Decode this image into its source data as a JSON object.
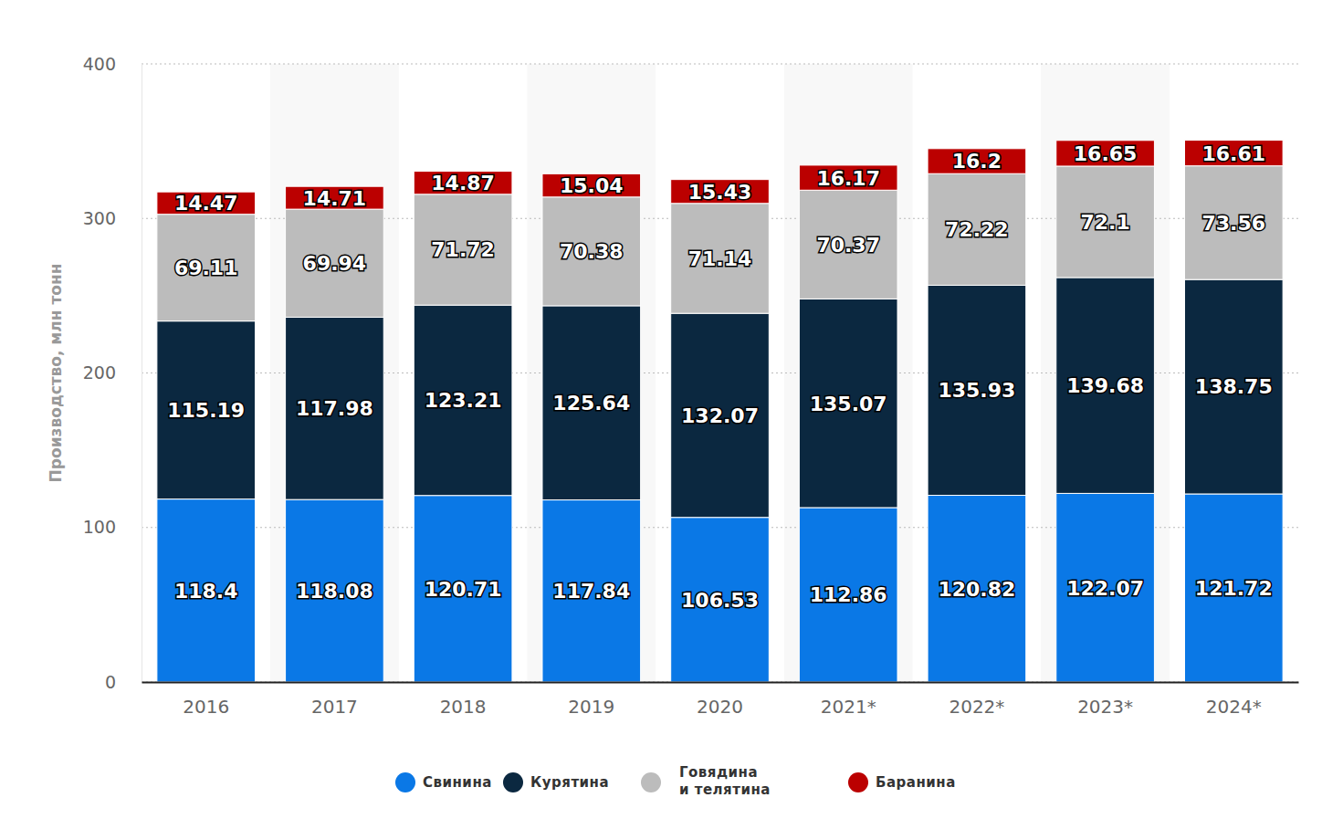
{
  "chart_data": {
    "type": "bar",
    "stacked": true,
    "data_labels": true,
    "grid": true,
    "legend": "bottom",
    "y_label": "Производство, млн тонн",
    "categories": [
      "2016",
      "2017",
      "2018",
      "2019",
      "2020",
      "2021*",
      "2022*",
      "2023*",
      "2024*"
    ],
    "ylim": [
      0,
      400
    ],
    "yticks": [
      0,
      100,
      200,
      300,
      400
    ],
    "series": [
      {
        "name": "Свинина",
        "color": "#0a78e6",
        "values": [
          118.4,
          118.08,
          120.71,
          117.84,
          106.53,
          112.86,
          120.82,
          122.07,
          121.72
        ]
      },
      {
        "name": "Курятина",
        "color": "#0b2840",
        "values": [
          115.19,
          117.98,
          123.21,
          125.64,
          132.07,
          135.07,
          135.93,
          139.68,
          138.75
        ]
      },
      {
        "name": "Говядина и телятина",
        "color": "#bcbcbc",
        "values": [
          69.11,
          69.94,
          71.72,
          70.38,
          71.14,
          70.37,
          72.22,
          72.1,
          73.56
        ]
      },
      {
        "name": "Баранина",
        "color": "#bb0000",
        "values": [
          14.47,
          14.71,
          14.87,
          15.04,
          15.43,
          16.17,
          16.2,
          16.65,
          16.61
        ]
      }
    ]
  }
}
